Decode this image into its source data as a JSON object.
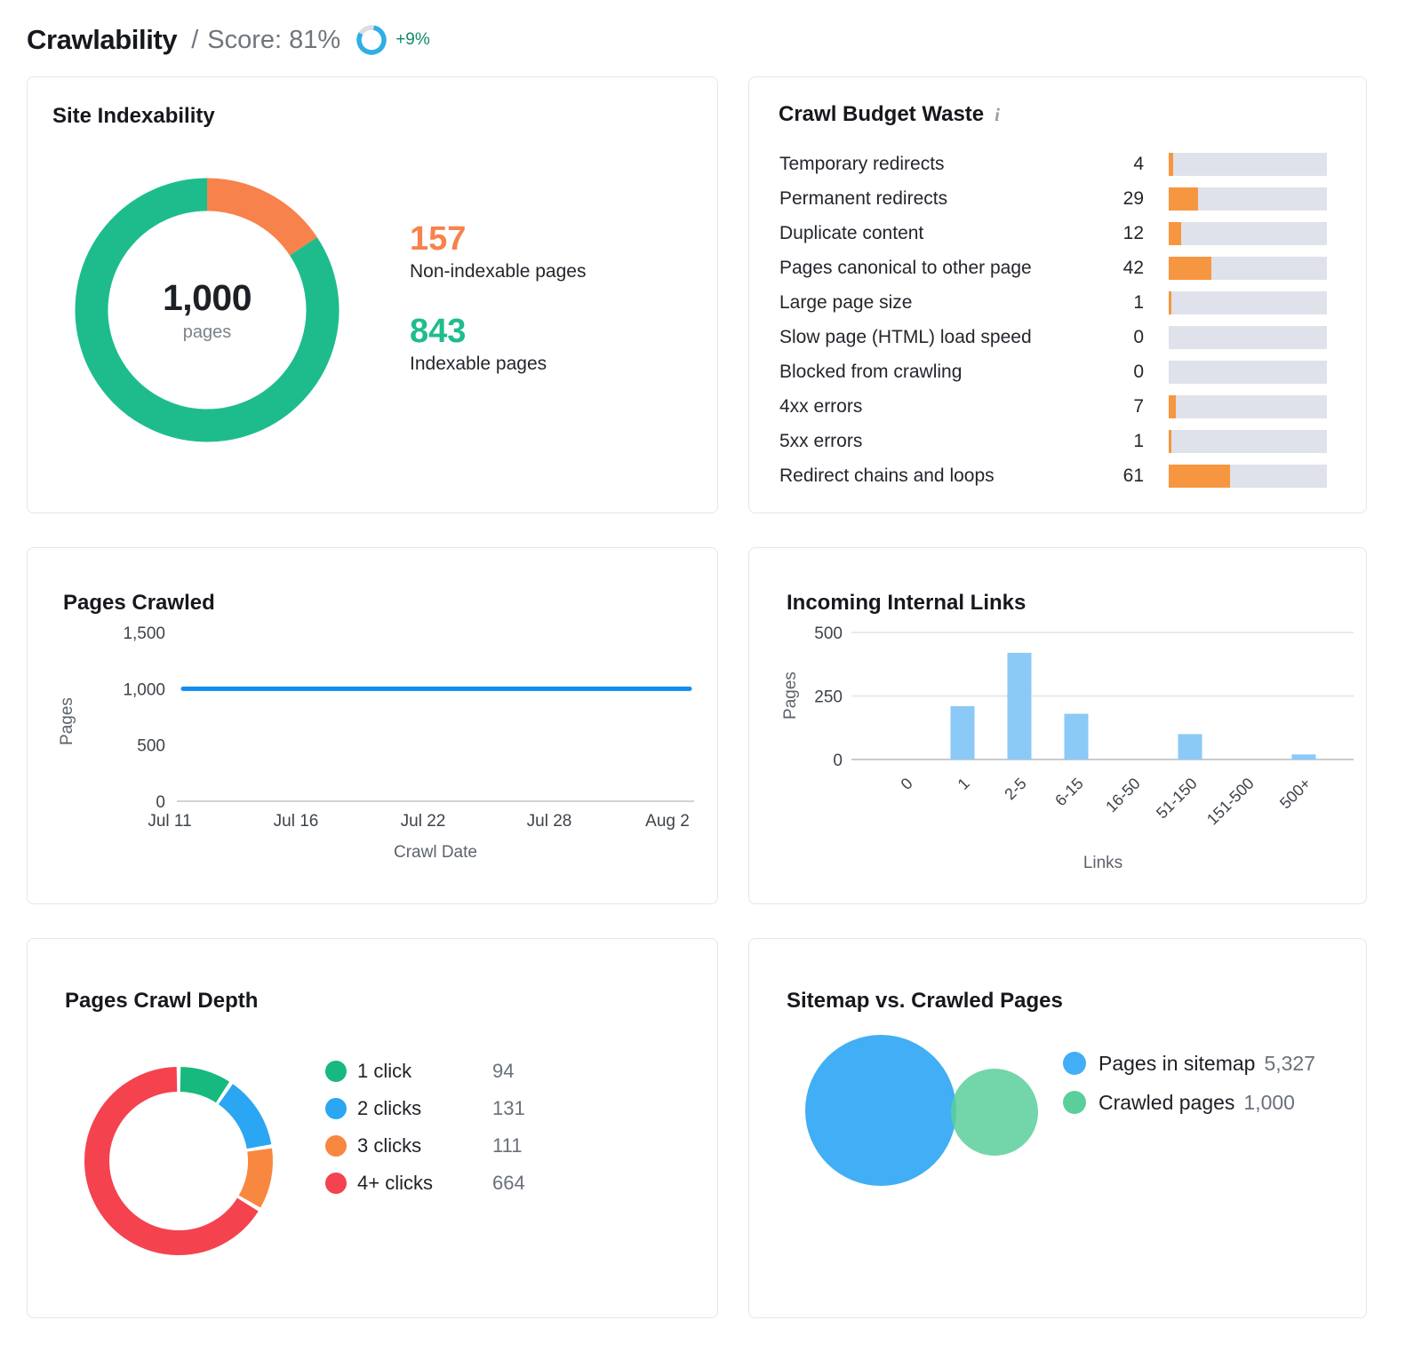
{
  "header": {
    "title": "Crawlability",
    "separator": "/",
    "score_text": "Score: 81%",
    "score_value": 81,
    "delta": "+9%",
    "ring_color": "#31aee6",
    "ring_rest_color": "#d9dee3"
  },
  "chart_data": [
    {
      "id": "site_indexability",
      "type": "pie",
      "title": "Site Indexability",
      "center_value": "1,000",
      "center_label": "pages",
      "segments": [
        {
          "name": "Non-indexable pages",
          "value": 157,
          "color": "#f8824b"
        },
        {
          "name": "Indexable pages",
          "value": 843,
          "color": "#1ebc8d"
        }
      ]
    },
    {
      "id": "crawl_budget_waste",
      "type": "bar",
      "title": "Crawl Budget Waste",
      "info_icon_glyph": "i",
      "bar_scale_max": 157,
      "bar_color": "#f79640",
      "track_color": "#dfe2ea",
      "rows": [
        {
          "label": "Temporary redirects",
          "value": 4
        },
        {
          "label": "Permanent redirects",
          "value": 29
        },
        {
          "label": "Duplicate content",
          "value": 12
        },
        {
          "label": "Pages canonical to other page",
          "value": 42
        },
        {
          "label": "Large page size",
          "value": 1
        },
        {
          "label": "Slow page (HTML) load speed",
          "value": 0
        },
        {
          "label": "Blocked from crawling",
          "value": 0
        },
        {
          "label": "4xx errors",
          "value": 7
        },
        {
          "label": "5xx errors",
          "value": 1
        },
        {
          "label": "Redirect chains and loops",
          "value": 61
        }
      ]
    },
    {
      "id": "pages_crawled",
      "type": "line",
      "title": "Pages Crawled",
      "xlabel": "Crawl Date",
      "ylabel": "Pages",
      "x": [
        "Jul 11",
        "Jul 16",
        "Jul 22",
        "Jul 28",
        "Aug 2"
      ],
      "values": [
        1000,
        1000,
        1000,
        1000,
        1000
      ],
      "ylim": [
        0,
        1500
      ],
      "yticks": [
        "0",
        "500",
        "1,000",
        "1,500"
      ],
      "line_color": "#0f8df2",
      "grid": false
    },
    {
      "id": "incoming_internal_links",
      "type": "bar",
      "title": "Incoming Internal Links",
      "xlabel": "Links",
      "ylabel": "Pages",
      "categories": [
        "0",
        "1",
        "2-5",
        "6-15",
        "16-50",
        "51-150",
        "151-500",
        "500+"
      ],
      "values": [
        0,
        210,
        420,
        180,
        0,
        100,
        0,
        20
      ],
      "ylim": [
        0,
        500
      ],
      "yticks": [
        "0",
        "250",
        "500"
      ],
      "bar_color": "#8bc9f7",
      "grid": true
    },
    {
      "id": "pages_crawl_depth",
      "type": "pie",
      "title": "Pages Crawl Depth",
      "segments": [
        {
          "name": "1 click",
          "value": 94,
          "color": "#17b97f"
        },
        {
          "name": "2 clicks",
          "value": 131,
          "color": "#2ba6f2"
        },
        {
          "name": "3 clicks",
          "value": 111,
          "color": "#f8873f"
        },
        {
          "name": "4+ clicks",
          "value": 664,
          "color": "#f4424e"
        }
      ]
    },
    {
      "id": "sitemap_vs_crawled",
      "type": "venn",
      "title": "Sitemap vs. Crawled Pages",
      "sets": [
        {
          "name": "Pages in sitemap",
          "value": "5,327",
          "color": "#41aef5"
        },
        {
          "name": "Crawled pages",
          "value": "1,000",
          "color": "#5bcf9b"
        }
      ]
    }
  ]
}
